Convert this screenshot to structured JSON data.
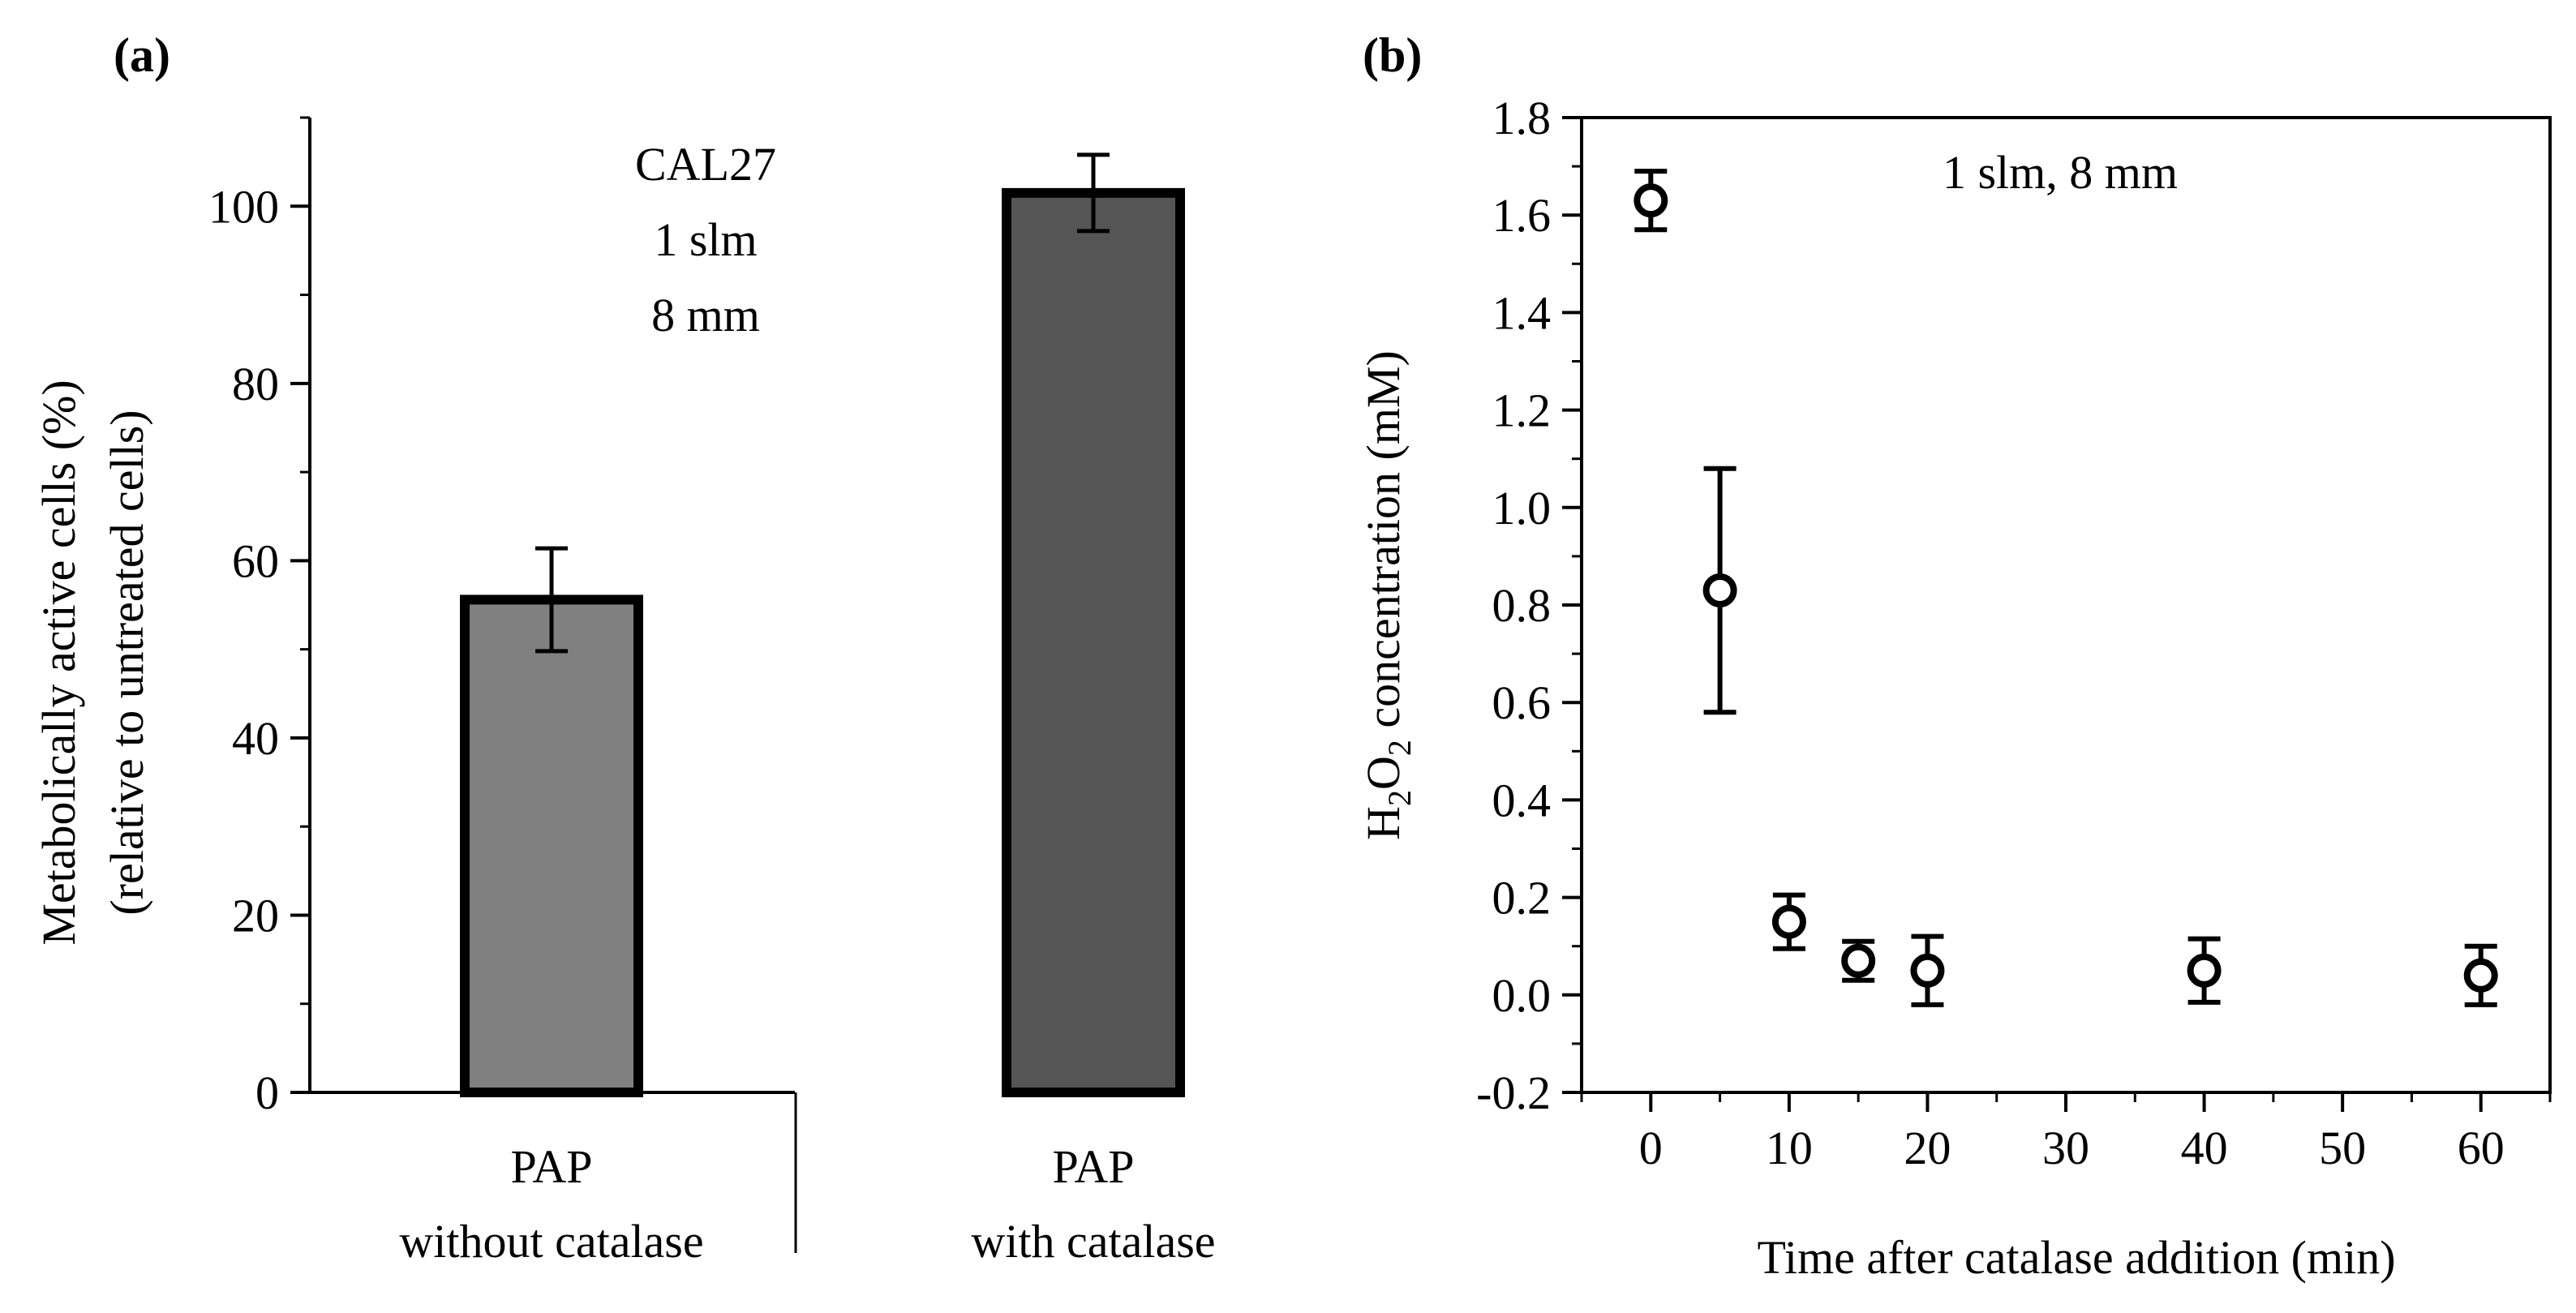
{
  "chart_data": [
    {
      "panel_label": "(a)",
      "type": "bar",
      "categories": [
        {
          "line1": "PAP",
          "line2": "without catalase"
        },
        {
          "line1": "PAP",
          "line2": "with catalase"
        }
      ],
      "values": [
        55.6,
        101.5
      ],
      "errors": [
        5.8,
        4.3
      ],
      "bar_colors": [
        "#808080",
        "#555555"
      ],
      "ylabel_line1": "Metabolically active cells (%)",
      "ylabel_line2": "(relative to untreated cells)",
      "ylim": [
        0,
        110
      ],
      "yticks": [
        0,
        20,
        40,
        60,
        80,
        100
      ],
      "annotation": [
        "CAL27",
        "1 slm",
        "8 mm"
      ]
    },
    {
      "panel_label": "(b)",
      "type": "scatter",
      "x": [
        0,
        5,
        10,
        15,
        20,
        40,
        60
      ],
      "y": [
        1.63,
        0.83,
        0.15,
        0.07,
        0.05,
        0.05,
        0.04
      ],
      "yerr": [
        0.06,
        0.25,
        0.055,
        0.04,
        0.07,
        0.065,
        0.06
      ],
      "xlabel": "Time after catalase addition (min)",
      "ylabel": {
        "prefix": "H",
        "sub1": "2",
        "mid": "O",
        "sub2": "2",
        "suffix": " concentration (mM)"
      },
      "xlim": [
        -5,
        65
      ],
      "ylim": [
        -0.2,
        1.8
      ],
      "xticks": [
        0,
        10,
        20,
        30,
        40,
        50,
        60
      ],
      "yticks": [
        "-0.2",
        "0.0",
        "0.2",
        "0.4",
        "0.6",
        "0.8",
        "1.0",
        "1.2",
        "1.4",
        "1.6",
        "1.8"
      ],
      "annotation": "1 slm, 8 mm"
    }
  ]
}
